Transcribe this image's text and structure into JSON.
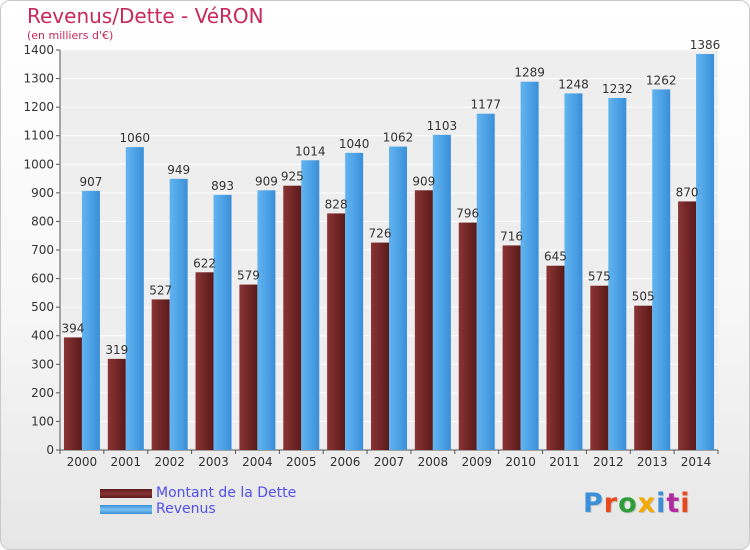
{
  "title": "Revenus/Dette - VéRON",
  "subtitle": "(en milliers d'€)",
  "logo": {
    "text": "Proxiti",
    "colors": [
      "#3a8fd8",
      "#e8481e",
      "#2f9e3a",
      "#f2a900",
      "#3a8fd8",
      "#b02aa0",
      "#e8481e"
    ]
  },
  "chart_data": {
    "type": "bar",
    "categories": [
      "2000",
      "2001",
      "2002",
      "2003",
      "2004",
      "2005",
      "2006",
      "2007",
      "2008",
      "2009",
      "2010",
      "2011",
      "2012",
      "2013",
      "2014"
    ],
    "series": [
      {
        "name": "Montant de la Dette",
        "color": "#7a2a2a",
        "values": [
          394,
          319,
          527,
          622,
          579,
          925,
          828,
          726,
          909,
          796,
          716,
          645,
          575,
          505,
          870
        ]
      },
      {
        "name": "Revenus",
        "color": "#4fa3e6",
        "values": [
          907,
          1060,
          949,
          893,
          909,
          1014,
          1040,
          1062,
          1103,
          1177,
          1289,
          1248,
          1232,
          1262,
          1386
        ]
      }
    ],
    "ylim": [
      0,
      1400
    ],
    "yticks": [
      0,
      100,
      200,
      300,
      400,
      500,
      600,
      700,
      800,
      900,
      1000,
      1100,
      1200,
      1300,
      1400
    ],
    "grid": true,
    "legend": "bottom-left"
  }
}
